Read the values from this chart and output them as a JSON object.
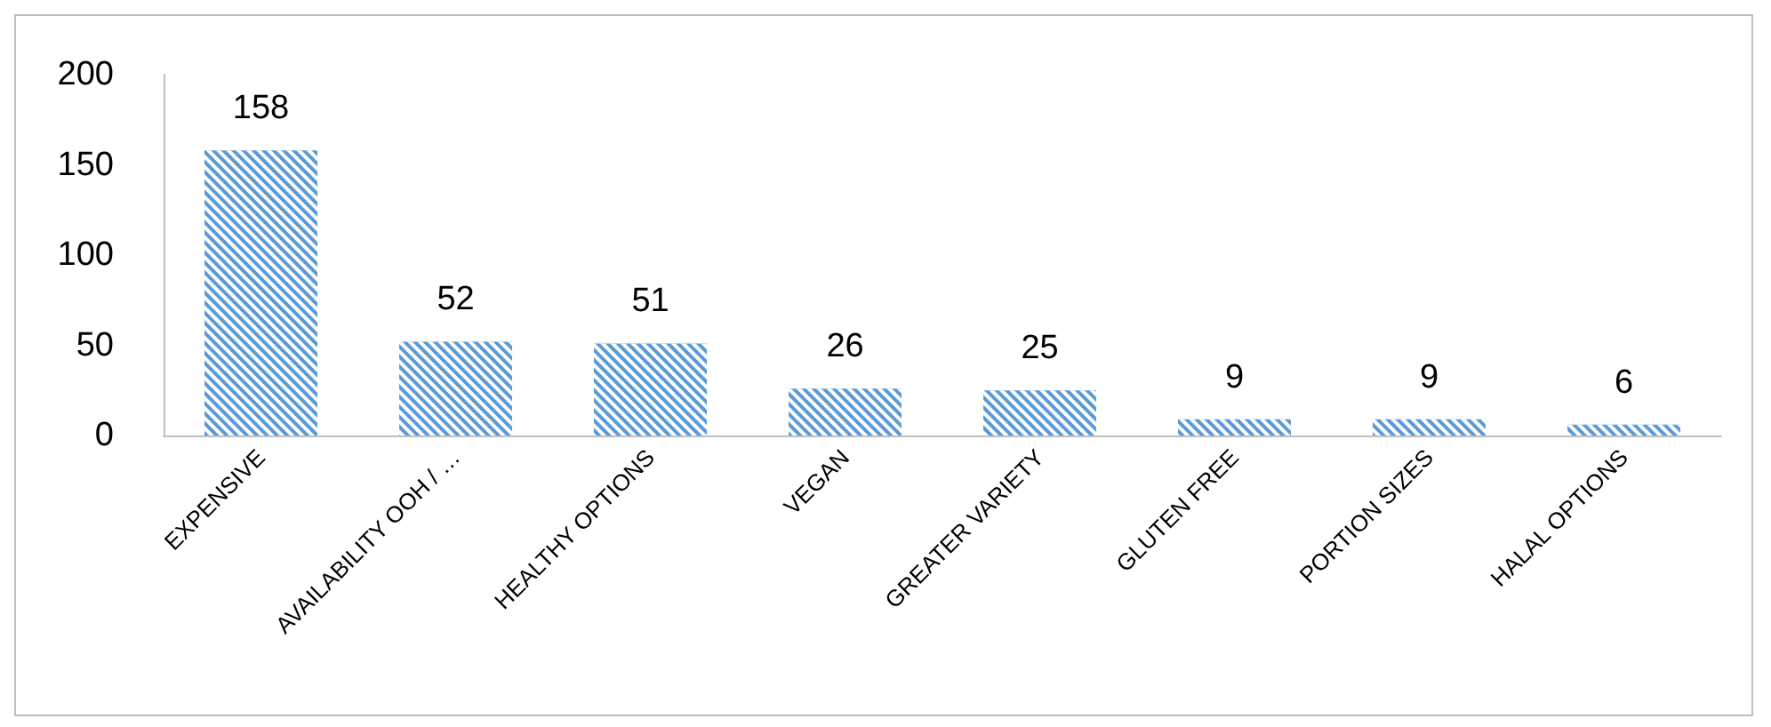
{
  "chart_data": {
    "type": "bar",
    "categories": [
      "EXPENSIVE",
      "AVAILABILITY OOH / …",
      "HEALTHY OPTIONS",
      "VEGAN",
      "GREATER VARIETY",
      "GLUTEN FREE",
      "PORTION SIZES",
      "HALAL OPTIONS"
    ],
    "values": [
      158,
      52,
      51,
      26,
      25,
      9,
      9,
      6
    ],
    "color": "#5b9bd5",
    "ylim": [
      0,
      200
    ],
    "yticks": [
      0,
      50,
      100,
      150,
      200
    ],
    "data_labels": true
  }
}
